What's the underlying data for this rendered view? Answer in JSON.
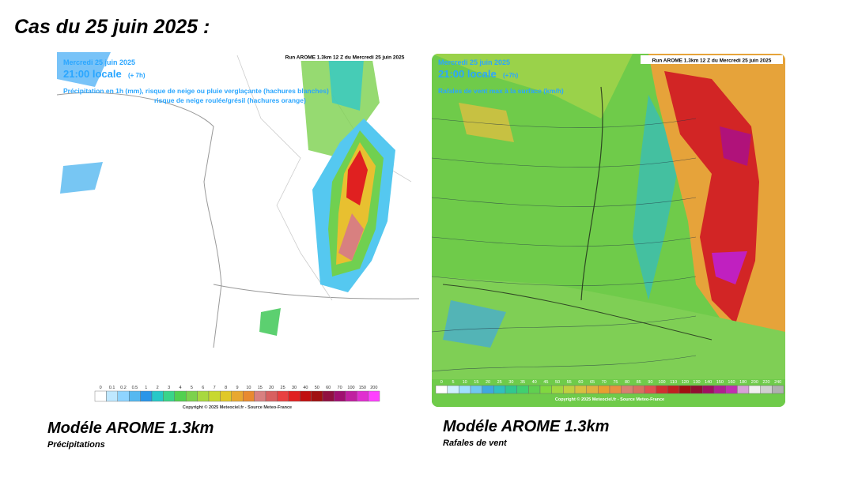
{
  "title": "Cas du 25 juin 2025 :",
  "panels": [
    {
      "date": "Mercredi 25 juin 2025",
      "time": "21:00 locale",
      "lead": "(+ 7h)",
      "field": "Précipitation en 1h (mm), risque de neige ou pluie verglaçante (hachures blanches)",
      "field2": "risque de neige roulée/grésil (hachures orange)",
      "run": "Run AROME 1.3km 12 Z du Mercredi 25 juin 2025",
      "scale": [
        "0",
        "0.1",
        "0.2",
        "0.5",
        "1",
        "2",
        "3",
        "4",
        "5",
        "6",
        "7",
        "8",
        "9",
        "10",
        "15",
        "20",
        "25",
        "30",
        "40",
        "50",
        "60",
        "70",
        "100",
        "150",
        "200"
      ],
      "copyright": "Copyright © 2025 Meteociel.fr - Source Meteo-France",
      "caption": "Modéle AROME 1.3km",
      "subcaption": "Précipitations"
    },
    {
      "date": "Mercredi 25 juin 2025",
      "time": "21:00 locale",
      "lead": "(+7h)",
      "field": "Rafales de vent max à la surface (km/h)",
      "run": "Run AROME 1.3km 12 Z du Mercredi 25 juin 2025",
      "scale": [
        "0",
        "5",
        "10",
        "15",
        "20",
        "25",
        "30",
        "35",
        "40",
        "45",
        "50",
        "55",
        "60",
        "65",
        "70",
        "75",
        "80",
        "85",
        "90",
        "100",
        "110",
        "120",
        "130",
        "140",
        "150",
        "160",
        "180",
        "200",
        "220",
        "240"
      ],
      "copyright": "Copyright © 2025 Meteociel.fr - Source Meteo-France",
      "caption": "Modéle AROME 1.3km",
      "subcaption": "Rafales de vent"
    }
  ]
}
